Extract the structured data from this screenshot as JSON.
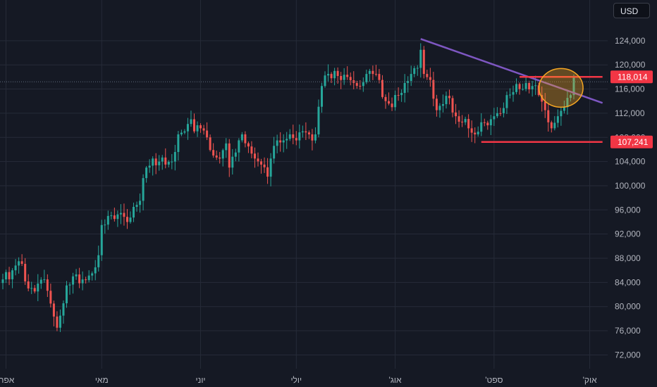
{
  "currency_button": "USD",
  "chart_data": {
    "type": "candlestick",
    "title": "",
    "xlabel": "",
    "ylabel": "",
    "ylim": [
      69000,
      127000
    ],
    "grid": true,
    "y_ticks": [
      72000,
      76000,
      80000,
      84000,
      88000,
      92000,
      96000,
      100000,
      104000,
      108000,
      112000,
      116000,
      120000,
      124000
    ],
    "y_tick_labels": [
      "72,000",
      "76,000",
      "80,000",
      "84,000",
      "88,000",
      "92,000",
      "96,000",
      "100,000",
      "104,000",
      "108,000",
      "112,000",
      "116,000",
      "120,000",
      "124,000"
    ],
    "x_ticks": [
      {
        "label": "'אפר",
        "day": 1
      },
      {
        "label": "מאי",
        "day": 31
      },
      {
        "label": "יוני",
        "day": 62
      },
      {
        "label": "יולי",
        "day": 92
      },
      {
        "label": "'אוג",
        "day": 123
      },
      {
        "label": "'ספט",
        "day": 154
      },
      {
        "label": "'אוק",
        "day": 184
      }
    ],
    "close_anchors": [
      [
        0,
        84500
      ],
      [
        3,
        86000
      ],
      [
        5,
        87500
      ],
      [
        8,
        83000
      ],
      [
        10,
        82500
      ],
      [
        13,
        84500
      ],
      [
        15,
        80500
      ],
      [
        17,
        76500
      ],
      [
        18,
        78500
      ],
      [
        20,
        83500
      ],
      [
        22,
        85000
      ],
      [
        25,
        84500
      ],
      [
        28,
        85500
      ],
      [
        30,
        88500
      ],
      [
        31,
        93500
      ],
      [
        33,
        95000
      ],
      [
        35,
        94500
      ],
      [
        37,
        95500
      ],
      [
        39,
        94000
      ],
      [
        41,
        96500
      ],
      [
        43,
        97500
      ],
      [
        45,
        103000
      ],
      [
        47,
        104500
      ],
      [
        49,
        104000
      ],
      [
        51,
        103500
      ],
      [
        53,
        104000
      ],
      [
        55,
        108500
      ],
      [
        57,
        109000
      ],
      [
        59,
        111000
      ],
      [
        60,
        109000
      ],
      [
        62,
        109500
      ],
      [
        64,
        108000
      ],
      [
        66,
        105000
      ],
      [
        68,
        104500
      ],
      [
        70,
        107000
      ],
      [
        71,
        103000
      ],
      [
        73,
        105500
      ],
      [
        75,
        108500
      ],
      [
        77,
        106500
      ],
      [
        79,
        104500
      ],
      [
        81,
        103500
      ],
      [
        83,
        101500
      ],
      [
        84,
        104500
      ],
      [
        86,
        107500
      ],
      [
        88,
        107500
      ],
      [
        90,
        108500
      ],
      [
        92,
        107500
      ],
      [
        94,
        109000
      ],
      [
        96,
        108500
      ],
      [
        98,
        108500
      ],
      [
        100,
        116500
      ],
      [
        102,
        118500
      ],
      [
        104,
        119000
      ],
      [
        106,
        117500
      ],
      [
        108,
        118000
      ],
      [
        110,
        117000
      ],
      [
        112,
        116500
      ],
      [
        114,
        118500
      ],
      [
        116,
        118500
      ],
      [
        118,
        117500
      ],
      [
        120,
        114000
      ],
      [
        122,
        113000
      ],
      [
        124,
        115000
      ],
      [
        126,
        117000
      ],
      [
        128,
        118500
      ],
      [
        130,
        119500
      ],
      [
        131,
        122500
      ],
      [
        132,
        118500
      ],
      [
        134,
        117500
      ],
      [
        136,
        112500
      ],
      [
        138,
        113500
      ],
      [
        140,
        114500
      ],
      [
        142,
        111500
      ],
      [
        144,
        110500
      ],
      [
        146,
        109500
      ],
      [
        148,
        108500
      ],
      [
        150,
        110500
      ],
      [
        152,
        110000
      ],
      [
        154,
        111500
      ],
      [
        156,
        112000
      ],
      [
        158,
        115000
      ],
      [
        160,
        115500
      ],
      [
        162,
        116000
      ],
      [
        164,
        117000
      ],
      [
        166,
        116500
      ],
      [
        168,
        115000
      ],
      [
        170,
        112500
      ],
      [
        172,
        109500
      ],
      [
        174,
        111500
      ],
      [
        176,
        113000
      ],
      [
        178,
        115000
      ],
      [
        179,
        118000
      ]
    ],
    "lines": [
      {
        "name": "descending-trendline",
        "color": "#7e57c2",
        "from": [
          131,
          124300
        ],
        "to": [
          188,
          113700
        ]
      },
      {
        "name": "resistance-line",
        "color": "#f23645",
        "from": [
          162,
          118014
        ],
        "to": [
          188,
          118014
        ]
      },
      {
        "name": "support-line",
        "color": "#f23645",
        "from": [
          150,
          107241
        ],
        "to": [
          188,
          107241
        ]
      }
    ],
    "highlight_ellipse": {
      "color": "#f5a623",
      "center": [
        175,
        116200
      ],
      "rx_days": 3.0,
      "ry_value": 3200
    },
    "price_tags": [
      {
        "value": 118014,
        "label": "118,014",
        "color": "#f23645"
      },
      {
        "value": 107241,
        "label": "107,241",
        "color": "#f23645"
      }
    ],
    "current_price": 117200,
    "colors": {
      "up": "#26a69a",
      "down": "#ef5350",
      "grid": "#262b38",
      "text": "#b2b5be",
      "background": "#151924"
    }
  }
}
